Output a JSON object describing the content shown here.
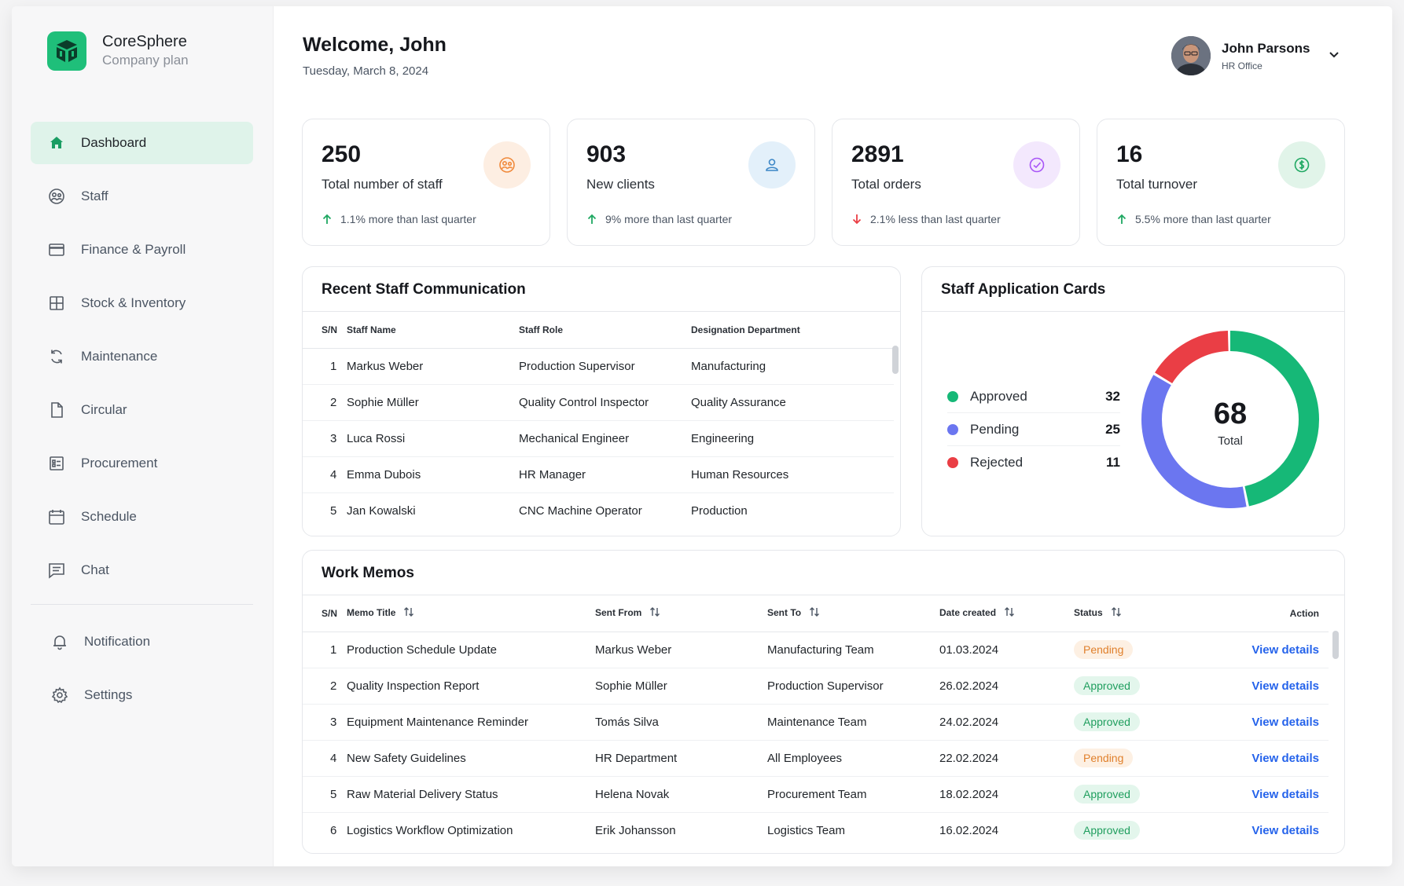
{
  "brand": {
    "name": "CoreSphere",
    "plan": "Company plan"
  },
  "nav": {
    "items": [
      {
        "label": "Dashboard",
        "icon": "home-icon",
        "active": true
      },
      {
        "label": "Staff",
        "icon": "staff-icon"
      },
      {
        "label": "Finance & Payroll",
        "icon": "credit-card-icon"
      },
      {
        "label": "Stock & Inventory",
        "icon": "grid-icon"
      },
      {
        "label": "Maintenance",
        "icon": "refresh-icon"
      },
      {
        "label": "Circular",
        "icon": "file-icon"
      },
      {
        "label": "Procurement",
        "icon": "procurement-icon"
      },
      {
        "label": "Schedule",
        "icon": "calendar-icon"
      },
      {
        "label": "Chat",
        "icon": "chat-icon"
      }
    ],
    "secondary": [
      {
        "label": "Notification",
        "icon": "bell-icon"
      },
      {
        "label": "Settings",
        "icon": "gear-icon"
      }
    ]
  },
  "header": {
    "title": "Welcome, John",
    "date": "Tuesday, March 8, 2024"
  },
  "profile": {
    "name": "John Parsons",
    "role": "HR Office"
  },
  "stats": [
    {
      "value": "250",
      "label": "Total number of staff",
      "trend": "1.1% more than last quarter",
      "direction": "up",
      "icon": "staff-icon",
      "color": "#f08a3c",
      "bg": "#fdeee2"
    },
    {
      "value": "903",
      "label": "New clients",
      "trend": "9% more than last quarter",
      "direction": "up",
      "icon": "user-icon",
      "color": "#3b86c6",
      "bg": "#e3f0fa"
    },
    {
      "value": "2891",
      "label": "Total orders",
      "trend": "2.1% less than last quarter",
      "direction": "down",
      "icon": "check-circle-icon",
      "color": "#a855f7",
      "bg": "#f3e8fd"
    },
    {
      "value": "16",
      "label": "Total turnover",
      "trend": "5.5% more than last quarter",
      "direction": "up",
      "icon": "dollar-icon",
      "color": "#1fa862",
      "bg": "#e1f4e9"
    }
  ],
  "communication": {
    "title": "Recent Staff Communication",
    "columns": [
      "S/N",
      "Staff Name",
      "Staff Role",
      "Designation Department"
    ],
    "rows": [
      [
        "1",
        "Markus Weber",
        "Production Supervisor",
        "Manufacturing"
      ],
      [
        "2",
        "Sophie Müller",
        "Quality Control Inspector",
        "Quality Assurance"
      ],
      [
        "3",
        "Luca Rossi",
        "Mechanical Engineer",
        "Engineering"
      ],
      [
        "4",
        "Emma Dubois",
        "HR Manager",
        "Human Resources"
      ],
      [
        "5",
        "Jan Kowalski",
        "CNC Machine Operator",
        "Production"
      ]
    ]
  },
  "applications": {
    "title": "Staff Application Cards",
    "total": "68",
    "total_label": "Total",
    "items": [
      {
        "label": "Approved",
        "value": 32,
        "color": "#16b877"
      },
      {
        "label": "Pending",
        "value": 25,
        "color": "#6b76f0"
      },
      {
        "label": "Rejected",
        "value": 11,
        "color": "#ea3e45"
      }
    ]
  },
  "memos": {
    "title": "Work Memos",
    "columns": [
      "S/N",
      "Memo Title",
      "Sent From",
      "Sent To",
      "Date created",
      "Status",
      "Action"
    ],
    "action_label": "View details",
    "rows": [
      [
        "1",
        "Production Schedule Update",
        "Markus Weber",
        "Manufacturing Team",
        "01.03.2024",
        "Pending"
      ],
      [
        "2",
        "Quality Inspection Report",
        "Sophie Müller",
        "Production Supervisor",
        "26.02.2024",
        "Approved"
      ],
      [
        "3",
        "Equipment Maintenance Reminder",
        "Tomás Silva",
        "Maintenance Team",
        "24.02.2024",
        "Approved"
      ],
      [
        "4",
        "New Safety Guidelines",
        "HR Department",
        "All Employees",
        "22.02.2024",
        "Pending"
      ],
      [
        "5",
        "Raw Material Delivery Status",
        "Helena Novak",
        "Procurement Team",
        "18.02.2024",
        "Approved"
      ],
      [
        "6",
        "Logistics Workflow Optimization",
        "Erik Johansson",
        "Logistics Team",
        "16.02.2024",
        "Approved"
      ]
    ]
  }
}
